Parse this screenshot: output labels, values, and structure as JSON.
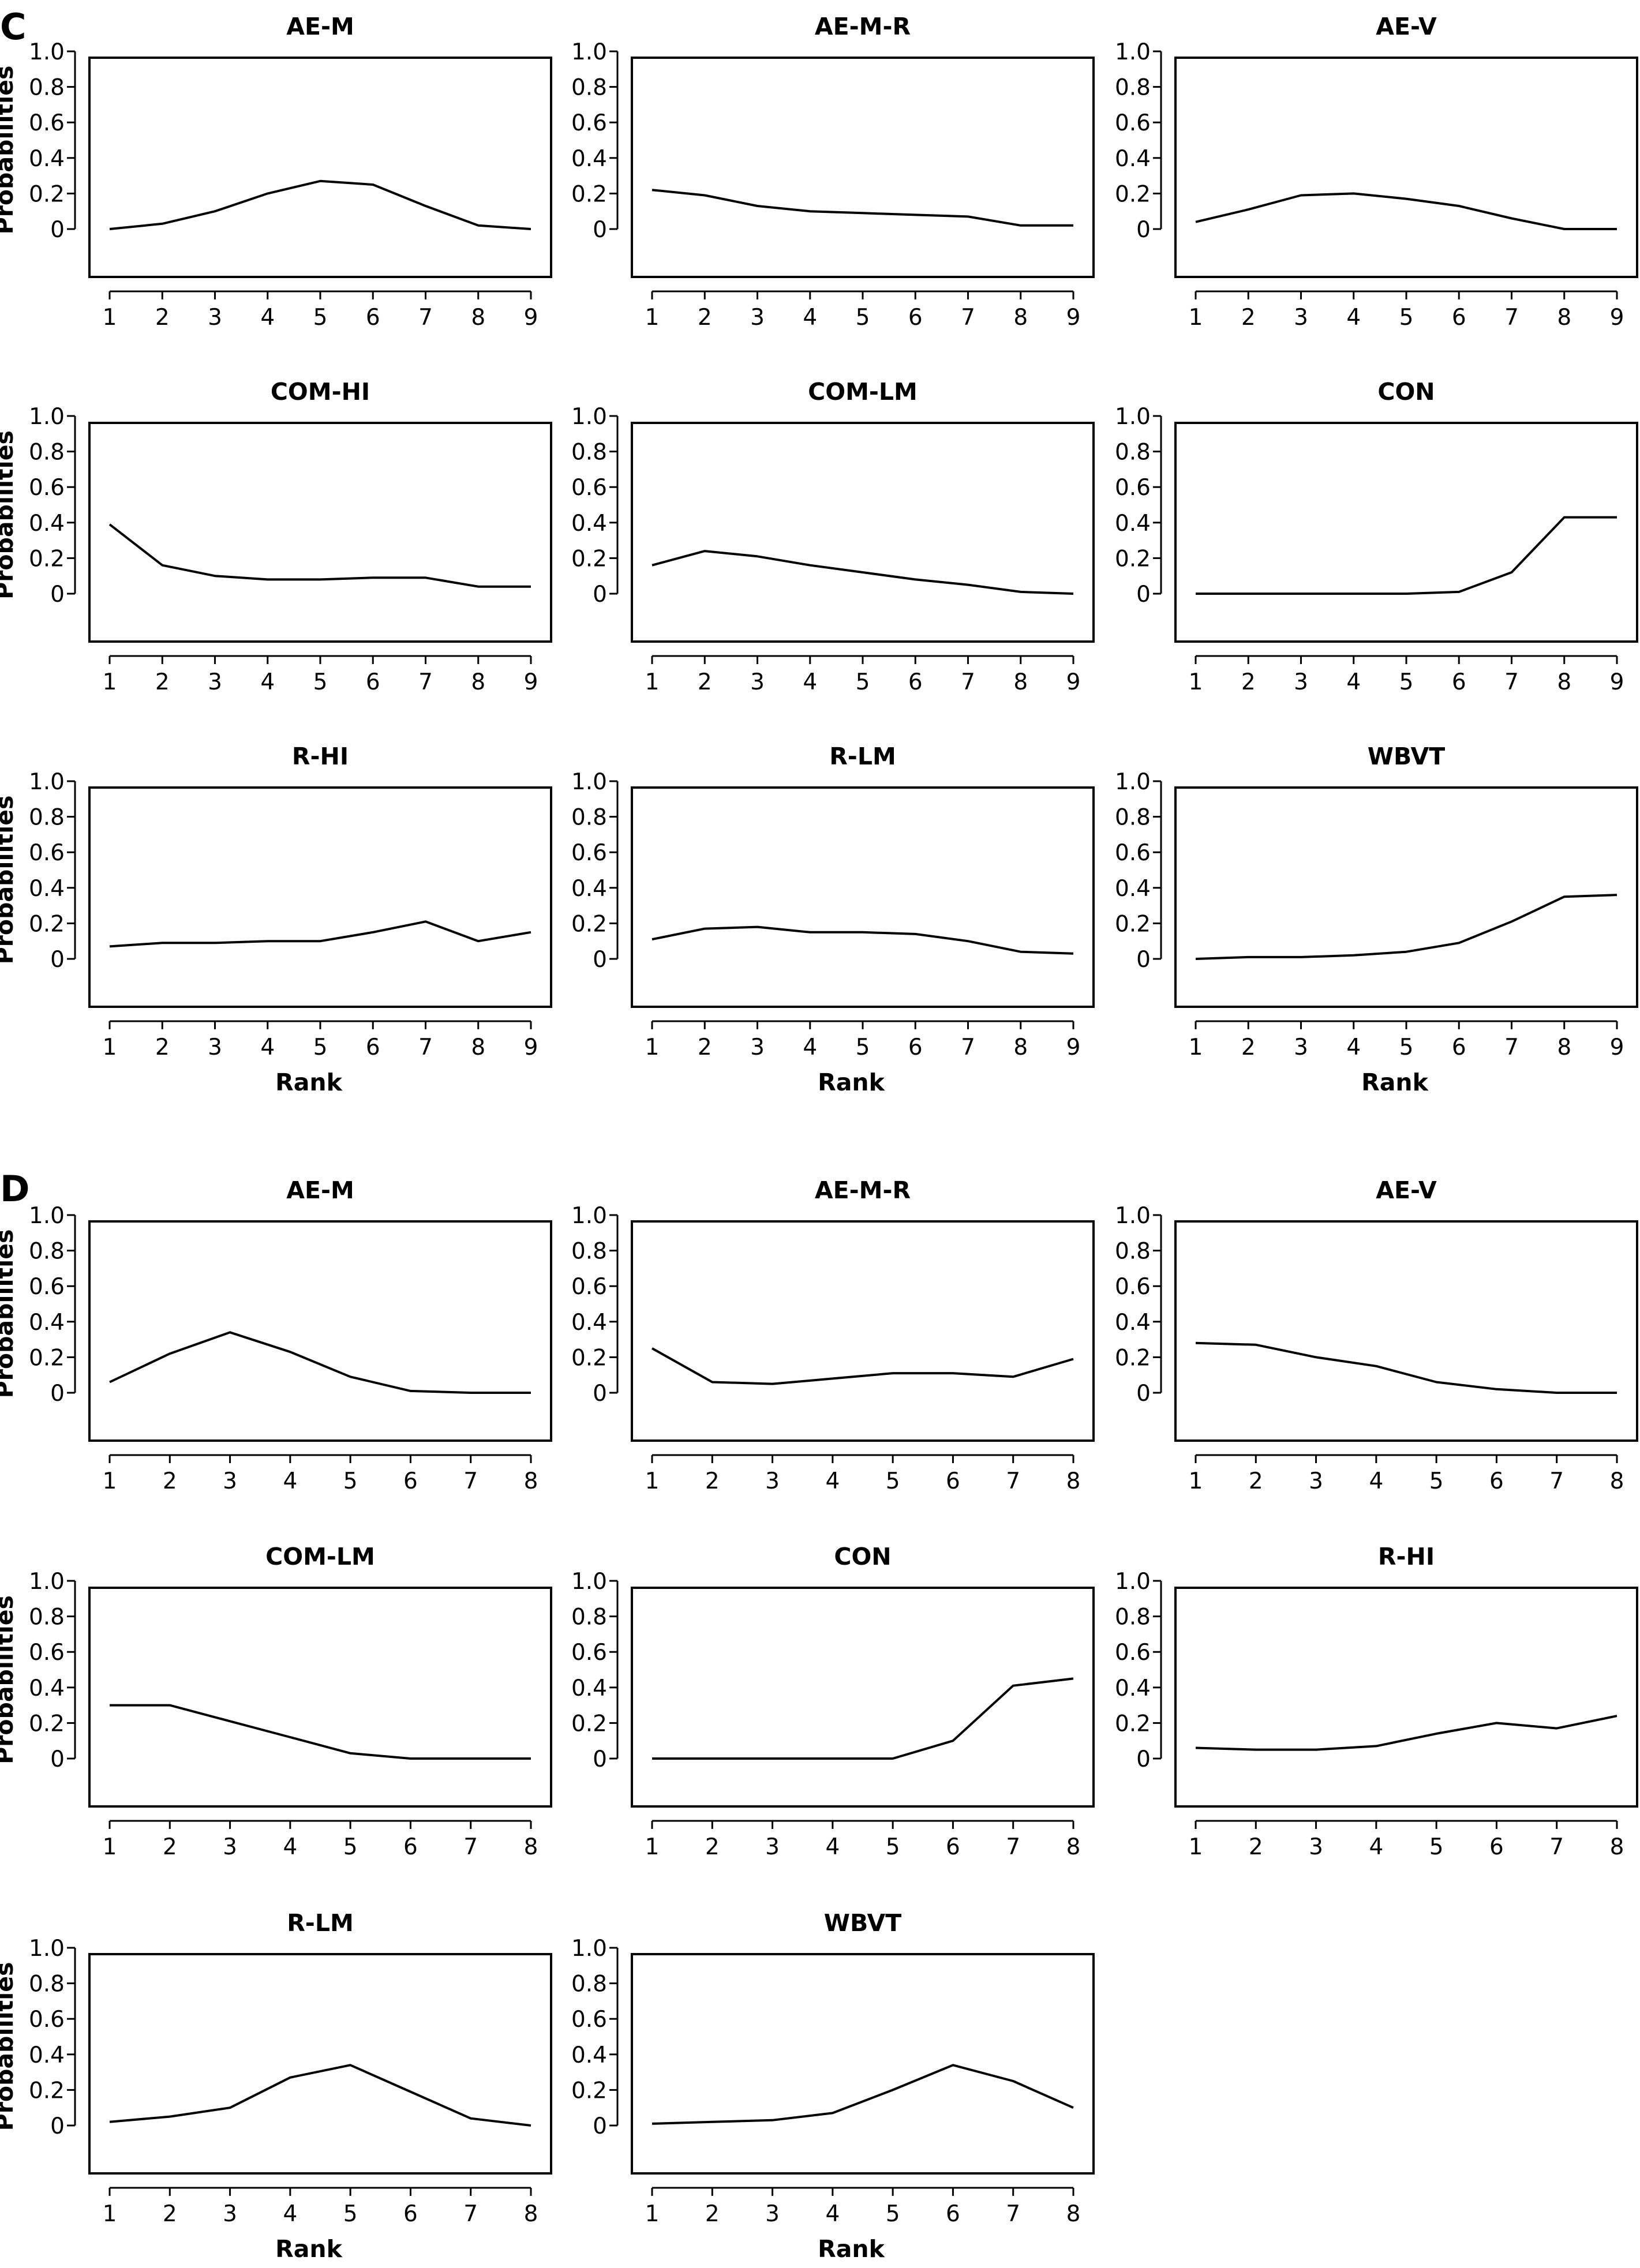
{
  "panels": [
    {
      "label": "C",
      "xlabel": "Rank",
      "ylabel": "Probabilities",
      "chart_data": [
        {
          "type": "line",
          "title": "AE-M",
          "x": [
            1,
            2,
            3,
            4,
            5,
            6,
            7,
            8,
            9
          ],
          "values": [
            0.0,
            0.03,
            0.1,
            0.2,
            0.27,
            0.25,
            0.13,
            0.02,
            0.0
          ],
          "xlim": [
            1,
            9
          ],
          "ylim": [
            0,
            1
          ],
          "yticks": [
            "0",
            "0.2",
            "0.4",
            "0.6",
            "0.8",
            "1.0"
          ],
          "xticks": [
            "1",
            "2",
            "3",
            "4",
            "5",
            "6",
            "7",
            "8",
            "9"
          ]
        },
        {
          "type": "line",
          "title": "AE-M-R",
          "x": [
            1,
            2,
            3,
            4,
            5,
            6,
            7,
            8,
            9
          ],
          "values": [
            0.22,
            0.19,
            0.13,
            0.1,
            0.09,
            0.08,
            0.07,
            0.02,
            0.02
          ],
          "xlim": [
            1,
            9
          ],
          "ylim": [
            0,
            1
          ],
          "yticks": [
            "0",
            "0.2",
            "0.4",
            "0.6",
            "0.8",
            "1.0"
          ],
          "xticks": [
            "1",
            "2",
            "3",
            "4",
            "5",
            "6",
            "7",
            "8",
            "9"
          ]
        },
        {
          "type": "line",
          "title": "AE-V",
          "x": [
            1,
            2,
            3,
            4,
            5,
            6,
            7,
            8,
            9
          ],
          "values": [
            0.04,
            0.11,
            0.19,
            0.2,
            0.17,
            0.13,
            0.06,
            0.0,
            0.0
          ],
          "xlim": [
            1,
            9
          ],
          "ylim": [
            0,
            1
          ],
          "yticks": [
            "0",
            "0.2",
            "0.4",
            "0.6",
            "0.8",
            "1.0"
          ],
          "xticks": [
            "1",
            "2",
            "3",
            "4",
            "5",
            "6",
            "7",
            "8",
            "9"
          ]
        },
        {
          "type": "line",
          "title": "COM-HI",
          "x": [
            1,
            2,
            3,
            4,
            5,
            6,
            7,
            8,
            9
          ],
          "values": [
            0.39,
            0.16,
            0.1,
            0.08,
            0.08,
            0.09,
            0.09,
            0.04,
            0.04
          ],
          "xlim": [
            1,
            9
          ],
          "ylim": [
            0,
            1
          ],
          "yticks": [
            "0",
            "0.2",
            "0.4",
            "0.6",
            "0.8",
            "1.0"
          ],
          "xticks": [
            "1",
            "2",
            "3",
            "4",
            "5",
            "6",
            "7",
            "8",
            "9"
          ]
        },
        {
          "type": "line",
          "title": "COM-LM",
          "x": [
            1,
            2,
            3,
            4,
            5,
            6,
            7,
            8,
            9
          ],
          "values": [
            0.16,
            0.24,
            0.21,
            0.16,
            0.12,
            0.08,
            0.05,
            0.01,
            0.0
          ],
          "xlim": [
            1,
            9
          ],
          "ylim": [
            0,
            1
          ],
          "yticks": [
            "0",
            "0.2",
            "0.4",
            "0.6",
            "0.8",
            "1.0"
          ],
          "xticks": [
            "1",
            "2",
            "3",
            "4",
            "5",
            "6",
            "7",
            "8",
            "9"
          ]
        },
        {
          "type": "line",
          "title": "CON",
          "x": [
            1,
            2,
            3,
            4,
            5,
            6,
            7,
            8,
            9
          ],
          "values": [
            0.0,
            0.0,
            0.0,
            0.0,
            0.0,
            0.01,
            0.12,
            0.43,
            0.43
          ],
          "xlim": [
            1,
            9
          ],
          "ylim": [
            0,
            1
          ],
          "yticks": [
            "0",
            "0.2",
            "0.4",
            "0.6",
            "0.8",
            "1.0"
          ],
          "xticks": [
            "1",
            "2",
            "3",
            "4",
            "5",
            "6",
            "7",
            "8",
            "9"
          ]
        },
        {
          "type": "line",
          "title": "R-HI",
          "x": [
            1,
            2,
            3,
            4,
            5,
            6,
            7,
            8,
            9
          ],
          "values": [
            0.07,
            0.09,
            0.09,
            0.1,
            0.1,
            0.15,
            0.21,
            0.1,
            0.15
          ],
          "xlim": [
            1,
            9
          ],
          "ylim": [
            0,
            1
          ],
          "yticks": [
            "0",
            "0.2",
            "0.4",
            "0.6",
            "0.8",
            "1.0"
          ],
          "xticks": [
            "1",
            "2",
            "3",
            "4",
            "5",
            "6",
            "7",
            "8",
            "9"
          ],
          "show_xlabel": true
        },
        {
          "type": "line",
          "title": "R-LM",
          "x": [
            1,
            2,
            3,
            4,
            5,
            6,
            7,
            8,
            9
          ],
          "values": [
            0.11,
            0.17,
            0.18,
            0.15,
            0.15,
            0.14,
            0.1,
            0.04,
            0.03
          ],
          "xlim": [
            1,
            9
          ],
          "ylim": [
            0,
            1
          ],
          "yticks": [
            "0",
            "0.2",
            "0.4",
            "0.6",
            "0.8",
            "1.0"
          ],
          "xticks": [
            "1",
            "2",
            "3",
            "4",
            "5",
            "6",
            "7",
            "8",
            "9"
          ],
          "show_xlabel": true
        },
        {
          "type": "line",
          "title": "WBVT",
          "x": [
            1,
            2,
            3,
            4,
            5,
            6,
            7,
            8,
            9
          ],
          "values": [
            0.0,
            0.01,
            0.01,
            0.02,
            0.04,
            0.09,
            0.21,
            0.35,
            0.36
          ],
          "xlim": [
            1,
            9
          ],
          "ylim": [
            0,
            1
          ],
          "yticks": [
            "0",
            "0.2",
            "0.4",
            "0.6",
            "0.8",
            "1.0"
          ],
          "xticks": [
            "1",
            "2",
            "3",
            "4",
            "5",
            "6",
            "7",
            "8",
            "9"
          ],
          "show_xlabel": true
        }
      ]
    },
    {
      "label": "D",
      "xlabel": "Rank",
      "ylabel": "Probabilities",
      "chart_data": [
        {
          "type": "line",
          "title": "AE-M",
          "x": [
            1,
            2,
            3,
            4,
            5,
            6,
            7,
            8
          ],
          "values": [
            0.06,
            0.22,
            0.34,
            0.23,
            0.09,
            0.01,
            0.0,
            0.0
          ],
          "xlim": [
            1,
            8
          ],
          "ylim": [
            0,
            1
          ],
          "yticks": [
            "0",
            "0.2",
            "0.4",
            "0.6",
            "0.8",
            "1.0"
          ],
          "xticks": [
            "1",
            "2",
            "3",
            "4",
            "5",
            "6",
            "7",
            "8"
          ]
        },
        {
          "type": "line",
          "title": "AE-M-R",
          "x": [
            1,
            2,
            3,
            4,
            5,
            6,
            7,
            8
          ],
          "values": [
            0.25,
            0.06,
            0.05,
            0.08,
            0.11,
            0.11,
            0.09,
            0.19
          ],
          "xlim": [
            1,
            8
          ],
          "ylim": [
            0,
            1
          ],
          "yticks": [
            "0",
            "0.2",
            "0.4",
            "0.6",
            "0.8",
            "1.0"
          ],
          "xticks": [
            "1",
            "2",
            "3",
            "4",
            "5",
            "6",
            "7",
            "8"
          ]
        },
        {
          "type": "line",
          "title": "AE-V",
          "x": [
            1,
            2,
            3,
            4,
            5,
            6,
            7,
            8
          ],
          "values": [
            0.28,
            0.27,
            0.2,
            0.15,
            0.06,
            0.02,
            0.0,
            0.0
          ],
          "xlim": [
            1,
            8
          ],
          "ylim": [
            0,
            1
          ],
          "yticks": [
            "0",
            "0.2",
            "0.4",
            "0.6",
            "0.8",
            "1.0"
          ],
          "xticks": [
            "1",
            "2",
            "3",
            "4",
            "5",
            "6",
            "7",
            "8"
          ]
        },
        {
          "type": "line",
          "title": "COM-LM",
          "x": [
            1,
            2,
            3,
            4,
            5,
            6,
            7,
            8
          ],
          "values": [
            0.3,
            0.3,
            0.21,
            0.12,
            0.03,
            0.0,
            0.0,
            0.0
          ],
          "xlim": [
            1,
            8
          ],
          "ylim": [
            0,
            1
          ],
          "yticks": [
            "0",
            "0.2",
            "0.4",
            "0.6",
            "0.8",
            "1.0"
          ],
          "xticks": [
            "1",
            "2",
            "3",
            "4",
            "5",
            "6",
            "7",
            "8"
          ]
        },
        {
          "type": "line",
          "title": "CON",
          "x": [
            1,
            2,
            3,
            4,
            5,
            6,
            7,
            8
          ],
          "values": [
            0.0,
            0.0,
            0.0,
            0.0,
            0.0,
            0.1,
            0.41,
            0.45
          ],
          "xlim": [
            1,
            8
          ],
          "ylim": [
            0,
            1
          ],
          "yticks": [
            "0",
            "0.2",
            "0.4",
            "0.6",
            "0.8",
            "1.0"
          ],
          "xticks": [
            "1",
            "2",
            "3",
            "4",
            "5",
            "6",
            "7",
            "8"
          ]
        },
        {
          "type": "line",
          "title": "R-HI",
          "x": [
            1,
            2,
            3,
            4,
            5,
            6,
            7,
            8
          ],
          "values": [
            0.06,
            0.05,
            0.05,
            0.07,
            0.14,
            0.2,
            0.17,
            0.24
          ],
          "xlim": [
            1,
            8
          ],
          "ylim": [
            0,
            1
          ],
          "yticks": [
            "0",
            "0.2",
            "0.4",
            "0.6",
            "0.8",
            "1.0"
          ],
          "xticks": [
            "1",
            "2",
            "3",
            "4",
            "5",
            "6",
            "7",
            "8"
          ]
        },
        {
          "type": "line",
          "title": "R-LM",
          "x": [
            1,
            2,
            3,
            4,
            5,
            6,
            7,
            8
          ],
          "values": [
            0.02,
            0.05,
            0.1,
            0.27,
            0.34,
            0.19,
            0.04,
            0.0
          ],
          "xlim": [
            1,
            8
          ],
          "ylim": [
            0,
            1
          ],
          "yticks": [
            "0",
            "0.2",
            "0.4",
            "0.6",
            "0.8",
            "1.0"
          ],
          "xticks": [
            "1",
            "2",
            "3",
            "4",
            "5",
            "6",
            "7",
            "8"
          ],
          "show_xlabel": true
        },
        {
          "type": "line",
          "title": "WBVT",
          "x": [
            1,
            2,
            3,
            4,
            5,
            6,
            7,
            8
          ],
          "values": [
            0.01,
            0.02,
            0.03,
            0.07,
            0.2,
            0.34,
            0.25,
            0.1
          ],
          "xlim": [
            1,
            8
          ],
          "ylim": [
            0,
            1
          ],
          "yticks": [
            "0",
            "0.2",
            "0.4",
            "0.6",
            "0.8",
            "1.0"
          ],
          "xticks": [
            "1",
            "2",
            "3",
            "4",
            "5",
            "6",
            "7",
            "8"
          ],
          "show_xlabel": true
        }
      ]
    }
  ]
}
